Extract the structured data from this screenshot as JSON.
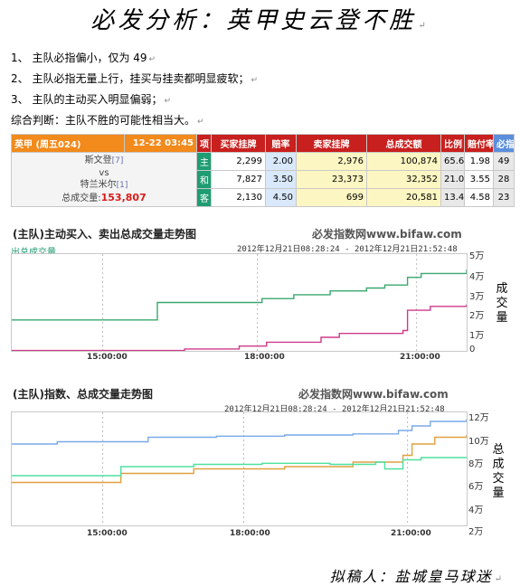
{
  "title": "必发分析：英甲史云登不胜",
  "analysis": {
    "points": [
      "1、 主队必指偏小，仅为 49",
      "2、 主队必指无量上行，挂买与挂卖都明显疲软；",
      "3、 主队的主动买入明显偏弱；"
    ],
    "conclusion": "综合判断：主队不胜的可能性相当大。"
  },
  "odds_table": {
    "league": "英甲 (周五024)",
    "datetime": "12-22 03:45",
    "headers": [
      "项",
      "买家挂牌",
      "赔率",
      "卖家挂牌",
      "总成交额",
      "比例",
      "赔付率",
      "必指"
    ],
    "home_team": "斯文登",
    "home_rank": "[7]",
    "vs": "vs",
    "away_team": "特兰米尔",
    "away_rank": "[1]",
    "total_label": "总成交量:",
    "total_value": "153,807",
    "rows": [
      {
        "sel": "主",
        "buy": "2,299",
        "odds": "2.00",
        "sell": "2,976",
        "total": "100,874",
        "ratio": "65.6",
        "payout": "1.98",
        "index": "49"
      },
      {
        "sel": "和",
        "buy": "7,827",
        "odds": "3.50",
        "sell": "23,373",
        "total": "32,352",
        "ratio": "21.0",
        "payout": "3.55",
        "index": "28"
      },
      {
        "sel": "客",
        "buy": "2,130",
        "odds": "4.50",
        "sell": "699",
        "total": "20,581",
        "ratio": "13.4",
        "payout": "4.58",
        "index": "23"
      }
    ]
  },
  "chart1": {
    "title": "(主队)主动买入、卖出总成交量走势图",
    "brand": "必发指数网www.bifaw.com",
    "range": "2012年12月21日08:28:24 - 2012年12月21日21:52:48",
    "legend": "出总成交量",
    "side_label": "成交量",
    "x_ticks": [
      "15:00:00",
      "18:00:00",
      "21:00:00"
    ],
    "y_ticks": [
      "5万",
      "4万",
      "3万",
      "2万",
      "1万",
      "0"
    ]
  },
  "chart2": {
    "title": "(主队)指数、总成交量走势图",
    "brand": "必发指数网www.bifaw.com",
    "range": "2012年12月21日08:28:24 - 2012年12月21日21:52:48",
    "side_label": "总成交量",
    "x_ticks": [
      "15:00:00",
      "18:00:00",
      "21:00:00"
    ],
    "y_ticks": [
      "12万",
      "10万",
      "8万",
      "6万",
      "4万",
      "2万"
    ]
  },
  "chart_data": [
    {
      "type": "line",
      "title": "(主队)主动买入、卖出总成交量走势图",
      "ylim": [
        0,
        50000
      ],
      "x_ticks": [
        "15:00:00",
        "18:00:00",
        "21:00:00"
      ],
      "colors": {
        "buy": "#3aa86f",
        "sell": "#cf3a8a"
      },
      "series": [
        {
          "name": "",
          "color": "#3aa86f",
          "x": [
            0,
            0.22,
            0.24,
            0.31,
            0.32,
            0.55,
            0.62,
            0.7,
            0.78,
            0.82,
            0.87,
            0.9,
            1.0
          ],
          "values": [
            16000,
            16000,
            16000,
            16000,
            25000,
            27000,
            29000,
            31000,
            32500,
            34000,
            38000,
            40000,
            42000
          ]
        },
        {
          "name": "",
          "color": "#cf3a8a",
          "x": [
            0,
            0.3,
            0.38,
            0.5,
            0.56,
            0.68,
            0.72,
            0.86,
            0.87,
            0.92,
            1.0
          ],
          "values": [
            200,
            200,
            1000,
            2500,
            4500,
            7000,
            9000,
            10500,
            21000,
            23000,
            24000
          ]
        }
      ]
    },
    {
      "type": "line",
      "title": "(主队)指数、总成交量走势图",
      "ylim": [
        20000,
        120000
      ],
      "x_ticks": [
        "15:00:00",
        "18:00:00",
        "21:00:00"
      ],
      "colors": {
        "index": "#7aa9e8",
        "volume": "#e0a040",
        "other": "#4ee0a0"
      },
      "series": [
        {
          "name": "",
          "color": "#7aa9e8",
          "x": [
            0,
            0.1,
            0.2,
            0.3,
            0.45,
            0.6,
            0.75,
            0.85,
            0.88,
            0.92,
            1.0
          ],
          "values": [
            92000,
            94000,
            94000,
            98000,
            99000,
            100000,
            101000,
            104000,
            108000,
            112000,
            114000
          ]
        },
        {
          "name": "",
          "color": "#e0a040",
          "x": [
            0,
            0.2,
            0.24,
            0.4,
            0.6,
            0.75,
            0.86,
            0.88,
            0.93,
            1.0
          ],
          "values": [
            58000,
            58000,
            66000,
            70000,
            72000,
            76000,
            82000,
            92000,
            98000,
            100000
          ]
        },
        {
          "name": "",
          "color": "#4ee0a0",
          "x": [
            0,
            0.2,
            0.24,
            0.4,
            0.55,
            0.7,
            0.8,
            0.82,
            0.86,
            0.9,
            1.0
          ],
          "values": [
            64000,
            64000,
            72000,
            74000,
            75000,
            74000,
            76000,
            70000,
            78000,
            80000,
            80000
          ]
        }
      ]
    }
  ]
}
